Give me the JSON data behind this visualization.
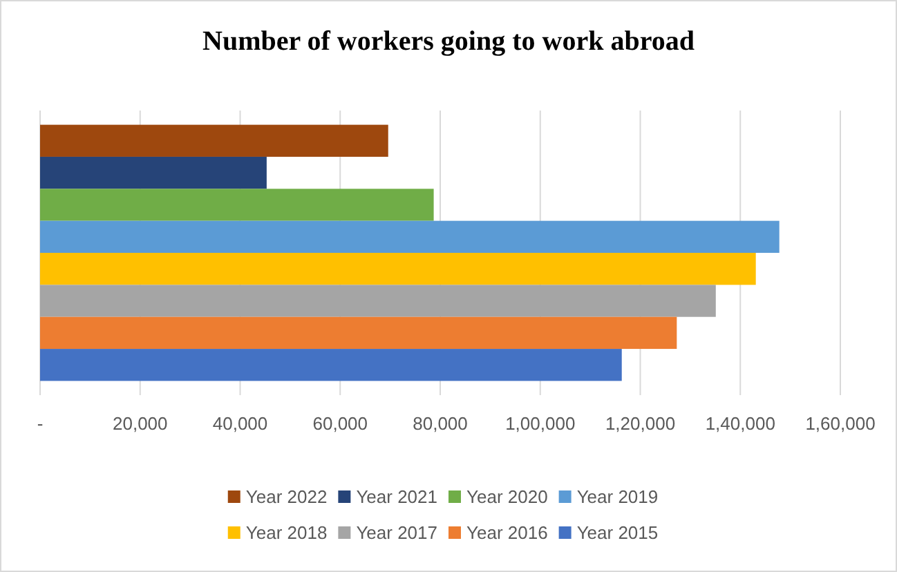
{
  "chart_data": {
    "type": "bar",
    "orientation": "horizontal",
    "title": "Number of workers going to work abroad",
    "categories": [
      null
    ],
    "series": [
      {
        "name": "Year 2022",
        "color": "#9e480e",
        "values": [
          69600
        ]
      },
      {
        "name": "Year 2021",
        "color": "#264478",
        "values": [
          45300
        ]
      },
      {
        "name": "Year 2020",
        "color": "#70ad47",
        "values": [
          78700
        ]
      },
      {
        "name": "Year 2019",
        "color": "#5b9bd5",
        "values": [
          147800
        ]
      },
      {
        "name": "Year 2018",
        "color": "#ffc000",
        "values": [
          143100
        ]
      },
      {
        "name": "Year 2017",
        "color": "#a5a5a5",
        "values": [
          135100
        ]
      },
      {
        "name": "Year 2016",
        "color": "#ed7d31",
        "values": [
          127300
        ]
      },
      {
        "name": "Year 2015",
        "color": "#4472c4",
        "values": [
          116300
        ]
      }
    ],
    "xlim": [
      0,
      160000
    ],
    "xticks": [
      {
        "value": 0,
        "label": "-"
      },
      {
        "value": 20000,
        "label": "20,000"
      },
      {
        "value": 40000,
        "label": "40,000"
      },
      {
        "value": 60000,
        "label": "60,000"
      },
      {
        "value": 80000,
        "label": "80,000"
      },
      {
        "value": 100000,
        "label": "1,00,000"
      },
      {
        "value": 120000,
        "label": "1,20,000"
      },
      {
        "value": 140000,
        "label": "1,40,000"
      },
      {
        "value": 160000,
        "label": "1,60,000"
      }
    ],
    "grid": "x",
    "legend": "bottom"
  }
}
